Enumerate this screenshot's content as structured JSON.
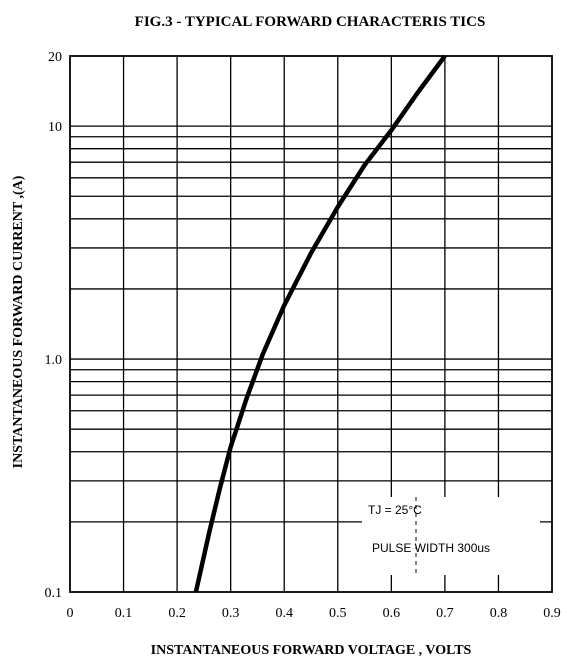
{
  "chart_data": {
    "type": "line",
    "title": "FIG.3 - TYPICAL FORWARD CHARACTERIS TICS",
    "xlabel": "INSTANTANEOUS FORWARD VOLTAGE , VOLTS",
    "ylabel": "INSTANTANEOUS  FORWARD CURRENT ,(A)",
    "x_scale": "linear",
    "y_scale": "log",
    "xlim": [
      0,
      0.9
    ],
    "ylim": [
      0.1,
      20
    ],
    "x_ticks": [
      "0",
      "0.1",
      "0.2",
      "0.3",
      "0.4",
      "0.5",
      "0.6",
      "0.7",
      "0.8",
      "0.9"
    ],
    "y_ticks": [
      {
        "value": 0.1,
        "label": "0.1"
      },
      {
        "value": 1,
        "label": "1.0"
      },
      {
        "value": 10,
        "label": "10"
      },
      {
        "value": 20,
        "label": "20"
      }
    ],
    "grid": true,
    "annotations": [
      "TJ = 25°C",
      "PULSE WIDTH 300us"
    ],
    "series": [
      {
        "x": [
          0.235,
          0.26,
          0.28,
          0.3,
          0.33,
          0.36,
          0.4,
          0.45,
          0.5,
          0.55,
          0.6,
          0.65,
          0.7
        ],
        "y": [
          0.1,
          0.18,
          0.28,
          0.42,
          0.68,
          1.05,
          1.7,
          2.85,
          4.5,
          6.8,
          9.6,
          14.0,
          20.0
        ]
      }
    ]
  }
}
